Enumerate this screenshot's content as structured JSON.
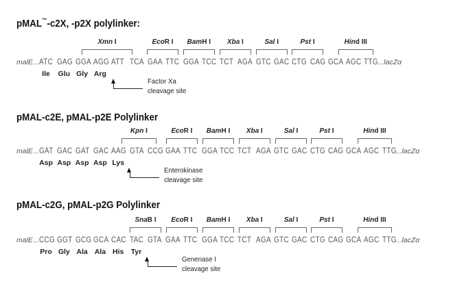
{
  "sections": [
    {
      "title": "pMAL",
      "title_tm": "™",
      "title_rest": "-c2X, -p2X polylinker:",
      "left_flank": "malE",
      "right_flank": "lacZα",
      "ellipsis": "...",
      "codons": [
        "ATC",
        "GAG",
        "GGA",
        "AGG",
        "ATT",
        "TCA",
        "GAA",
        "TTC",
        "GGA",
        "TCC",
        "TCT",
        "AGA",
        "GTC",
        "GAC",
        "CTG",
        "CAG",
        "GCA",
        "AGC",
        "TTG"
      ],
      "amino_acids": [
        "Ile",
        "Glu",
        "Gly",
        "Arg"
      ],
      "enzymes": [
        {
          "italic": "Xmn",
          "roman": " I"
        },
        {
          "italic": "Eco",
          "roman": "R I"
        },
        {
          "italic": "Bam",
          "roman": "H I"
        },
        {
          "italic": "Xba",
          "roman": " I"
        },
        {
          "italic": "Sal",
          "roman": " I"
        },
        {
          "italic": "Pst",
          "roman": " I"
        },
        {
          "italic": "Hin",
          "roman": "d III"
        }
      ],
      "cleavage_label": [
        "Factor Xa",
        "cleavage site"
      ]
    },
    {
      "title": "pMAL-c2E, pMAL-p2E Polylinker",
      "title_tm": "",
      "title_rest": "",
      "left_flank": "malE",
      "right_flank": "lacZα",
      "ellipsis": "...",
      "codons": [
        "GAT",
        "GAC",
        "GAT",
        "GAC",
        "AAG",
        "GTA",
        "CCG",
        "GAA",
        "TTC",
        "GGA",
        "TCC",
        "TCT",
        "AGA",
        "GTC",
        "GAC",
        "CTG",
        "CAG",
        "GCA",
        "AGC",
        "TTG"
      ],
      "amino_acids": [
        "Asp",
        "Asp",
        "Asp",
        "Asp",
        "Lys"
      ],
      "enzymes": [
        {
          "italic": "Kpn",
          "roman": " I"
        },
        {
          "italic": "Eco",
          "roman": "R I"
        },
        {
          "italic": "Bam",
          "roman": "H I"
        },
        {
          "italic": "Xba",
          "roman": " I"
        },
        {
          "italic": "Sal",
          "roman": " I"
        },
        {
          "italic": "Pst",
          "roman": " I"
        },
        {
          "italic": "Hin",
          "roman": "d III"
        }
      ],
      "cleavage_label": [
        "Enterokinase",
        "cleavage site"
      ]
    },
    {
      "title": "pMAL-c2G, pMAL-p2G Polylinker",
      "title_tm": "",
      "title_rest": "",
      "left_flank": "malE",
      "right_flank": "lacZα",
      "ellipsis": "...",
      "codons": [
        "CCG",
        "GGT",
        "GCG",
        "GCA",
        "CAC",
        "TAC",
        "GTA",
        "GAA",
        "TTC",
        "GGA",
        "TCC",
        "TCT",
        "AGA",
        "GTC",
        "GAC",
        "CTG",
        "CAG",
        "GCA",
        "AGC",
        "TTG"
      ],
      "amino_acids": [
        "Pro",
        "Gly",
        "Ala",
        "Ala",
        "His",
        "Tyr"
      ],
      "enzymes": [
        {
          "italic": "Sna",
          "roman": "B I"
        },
        {
          "italic": "Eco",
          "roman": "R I"
        },
        {
          "italic": "Bam",
          "roman": "H I"
        },
        {
          "italic": "Xba",
          "roman": " I"
        },
        {
          "italic": "Sal",
          "roman": " I"
        },
        {
          "italic": "Pst",
          "roman": " I"
        },
        {
          "italic": "Hin",
          "roman": "d III"
        }
      ],
      "cleavage_label": [
        "Genenase I",
        "cleavage site"
      ]
    }
  ]
}
